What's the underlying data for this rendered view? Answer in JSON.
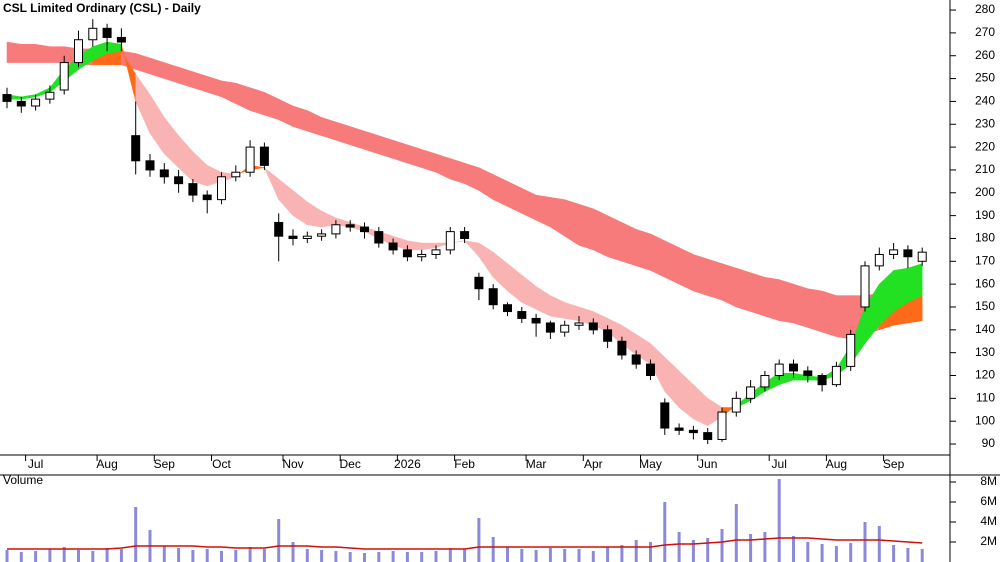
{
  "chart_data": [
    {
      "type": "candlestick",
      "title": "CSL Limited Ordinary (CSL) - Daily",
      "categories": [
        null,
        null,
        "Jul",
        null,
        null,
        null,
        null,
        "Aug",
        null,
        null,
        null,
        "Sep",
        null,
        null,
        null,
        "Oct",
        null,
        null,
        null,
        null,
        "Nov",
        null,
        null,
        null,
        "Dec",
        null,
        null,
        null,
        "2026",
        null,
        null,
        null,
        "Feb",
        null,
        null,
        null,
        null,
        "Mar",
        null,
        null,
        null,
        "Apr",
        null,
        null,
        null,
        "May",
        null,
        null,
        null,
        "Jun",
        null,
        null,
        null,
        null,
        "Jul",
        null,
        null,
        null,
        "Aug",
        null,
        null,
        null,
        "Sep",
        null,
        null
      ],
      "open": [
        243,
        240,
        238,
        241,
        245,
        257,
        267,
        272,
        268,
        225,
        214,
        210,
        207,
        204,
        199,
        197,
        207,
        209,
        220,
        187,
        181,
        180,
        181,
        182,
        186,
        185,
        183,
        178,
        175,
        172,
        173,
        175,
        183,
        163,
        158,
        151,
        148,
        145,
        143,
        139,
        142,
        143,
        140,
        135,
        129,
        125,
        108,
        97,
        96,
        95,
        92,
        104,
        110,
        115,
        120,
        125,
        122,
        120,
        116,
        124,
        150,
        168,
        173,
        175,
        170
      ],
      "high": [
        246,
        242,
        243,
        247,
        260,
        271,
        276,
        274,
        272,
        240,
        217,
        213,
        210,
        206,
        201,
        209,
        212,
        223,
        222,
        191,
        184,
        183,
        184,
        188,
        188,
        187,
        185,
        180,
        177,
        175,
        177,
        185,
        185,
        165,
        160,
        152,
        150,
        147,
        144,
        144,
        146,
        145,
        142,
        137,
        131,
        127,
        110,
        99,
        98,
        97,
        106,
        113,
        118,
        122,
        127,
        127,
        124,
        121,
        126,
        140,
        170,
        176,
        178,
        177,
        176
      ],
      "low": [
        237,
        235,
        236,
        239,
        243,
        255,
        264,
        262,
        262,
        208,
        207,
        204,
        200,
        196,
        191,
        195,
        205,
        207,
        210,
        170,
        177,
        178,
        179,
        180,
        183,
        180,
        176,
        173,
        170,
        170,
        171,
        173,
        178,
        153,
        149,
        146,
        143,
        137,
        136,
        137,
        140,
        138,
        132,
        127,
        123,
        118,
        94,
        94,
        92,
        90,
        91,
        102,
        108,
        113,
        118,
        119,
        117,
        113,
        115,
        122,
        148,
        166,
        171,
        167,
        168
      ],
      "close": [
        240,
        238,
        241,
        244,
        257,
        267,
        272,
        268,
        266,
        214,
        210,
        207,
        204,
        199,
        197,
        207,
        209,
        220,
        212,
        181,
        180,
        181,
        182,
        186,
        185,
        183,
        178,
        175,
        172,
        173,
        175,
        183,
        180,
        158,
        151,
        148,
        145,
        143,
        139,
        142,
        143,
        140,
        135,
        129,
        125,
        120,
        97,
        96,
        95,
        92,
        104,
        110,
        115,
        120,
        125,
        122,
        120,
        116,
        124,
        138,
        168,
        173,
        175,
        172,
        174
      ],
      "candle_colors": {
        "up": "#ffffff",
        "down": "#000000"
      },
      "short_band": {
        "fast": [
          243,
          242,
          243,
          246,
          254,
          260,
          264,
          266,
          265,
          240,
          226,
          217,
          211,
          205,
          203,
          205,
          207,
          212,
          211,
          197,
          190,
          186,
          185,
          186,
          185,
          183,
          180,
          177,
          175,
          175,
          176,
          178,
          179,
          172,
          163,
          157,
          152,
          149,
          146,
          145,
          144,
          142,
          139,
          134,
          129,
          125,
          113,
          106,
          101,
          98,
          102,
          107,
          112,
          117,
          121,
          121,
          120,
          119,
          123,
          133,
          150,
          160,
          166,
          167,
          169
        ],
        "slow": [
          241,
          241,
          242,
          244,
          249,
          254,
          258,
          261,
          262,
          252,
          243,
          233,
          225,
          218,
          212,
          209,
          208,
          210,
          211,
          206,
          201,
          196,
          192,
          189,
          187,
          185,
          183,
          181,
          179,
          178,
          178,
          178,
          179,
          178,
          174,
          169,
          164,
          159,
          155,
          152,
          150,
          148,
          145,
          142,
          138,
          134,
          128,
          122,
          116,
          110,
          106,
          106,
          109,
          113,
          116,
          118,
          118,
          118,
          120,
          125,
          134,
          142,
          148,
          152,
          155
        ],
        "colors": {
          "up": "#22e022",
          "down": "#f9b3b3",
          "cross": "#ff6a1a"
        }
      },
      "long_band": {
        "upper": [
          266,
          265,
          265,
          264,
          264,
          263,
          263,
          263,
          262,
          261,
          259,
          257,
          255,
          253,
          251,
          249,
          248,
          246,
          244,
          241,
          238,
          236,
          233,
          231,
          229,
          227,
          225,
          223,
          221,
          219,
          217,
          215,
          213,
          211,
          208,
          205,
          202,
          199,
          198,
          197,
          195,
          193,
          190,
          187,
          184,
          182,
          179,
          176,
          173,
          171,
          169,
          167,
          165,
          163,
          162,
          160,
          158,
          157,
          155,
          155,
          155,
          156,
          156,
          157,
          157
        ],
        "lower": [
          257,
          257,
          257,
          257,
          257,
          256,
          256,
          256,
          256,
          254,
          252,
          250,
          248,
          246,
          244,
          242,
          239,
          236,
          234,
          232,
          229,
          227,
          225,
          223,
          221,
          219,
          217,
          215,
          213,
          211,
          209,
          206,
          204,
          201,
          197,
          194,
          191,
          188,
          185,
          181,
          177,
          175,
          172,
          170,
          168,
          166,
          163,
          160,
          157,
          155,
          153,
          150,
          148,
          146,
          144,
          143,
          141,
          139,
          137,
          136,
          138,
          140,
          142,
          143,
          144
        ],
        "colors": {
          "below": "#f77b7b",
          "above": "#ff6a1a"
        }
      },
      "ylim": [
        85.2,
        284.4
      ],
      "yticks": [
        90,
        100,
        110,
        120,
        130,
        140,
        150,
        160,
        170,
        180,
        190,
        200,
        210,
        220,
        230,
        240,
        250,
        260,
        270,
        280
      ],
      "grid": false
    },
    {
      "type": "bar",
      "title": "Volume",
      "values": [
        1.2,
        1.0,
        1.1,
        1.3,
        1.5,
        1.2,
        1.1,
        1.4,
        1.3,
        5.5,
        3.2,
        1.6,
        1.4,
        1.2,
        1.3,
        1.1,
        1.2,
        1.5,
        1.3,
        4.3,
        2.0,
        1.3,
        1.2,
        1.1,
        1.0,
        0.9,
        1.0,
        1.1,
        1.0,
        1.0,
        1.1,
        1.4,
        1.3,
        4.4,
        2.5,
        1.5,
        1.3,
        1.2,
        1.4,
        1.3,
        1.3,
        1.1,
        1.5,
        1.7,
        2.2,
        2.0,
        6.0,
        3.0,
        2.2,
        2.4,
        3.3,
        5.8,
        2.8,
        3.0,
        8.3,
        2.6,
        2.0,
        1.8,
        1.6,
        1.9,
        4.0,
        3.6,
        1.7,
        1.4,
        1.3
      ],
      "average": [
        1.3,
        1.3,
        1.3,
        1.3,
        1.3,
        1.3,
        1.3,
        1.3,
        1.4,
        1.6,
        1.6,
        1.6,
        1.6,
        1.6,
        1.5,
        1.5,
        1.4,
        1.4,
        1.4,
        1.6,
        1.6,
        1.6,
        1.5,
        1.5,
        1.4,
        1.3,
        1.3,
        1.3,
        1.3,
        1.3,
        1.3,
        1.3,
        1.3,
        1.5,
        1.5,
        1.5,
        1.5,
        1.5,
        1.5,
        1.5,
        1.5,
        1.5,
        1.5,
        1.5,
        1.5,
        1.5,
        1.7,
        1.8,
        1.8,
        1.9,
        2.0,
        2.2,
        2.2,
        2.3,
        2.4,
        2.4,
        2.4,
        2.3,
        2.2,
        2.2,
        2.2,
        2.2,
        2.1,
        2.0,
        1.9
      ],
      "color": "#8a8ad8",
      "average_color": "#cc1111",
      "ylim": [
        0,
        8.7
      ],
      "yticks": [
        {
          "value": 2,
          "label": "2M"
        },
        {
          "value": 4,
          "label": "4M"
        },
        {
          "value": 6,
          "label": "6M"
        },
        {
          "value": 8,
          "label": "8M"
        }
      ],
      "grid": false
    }
  ]
}
